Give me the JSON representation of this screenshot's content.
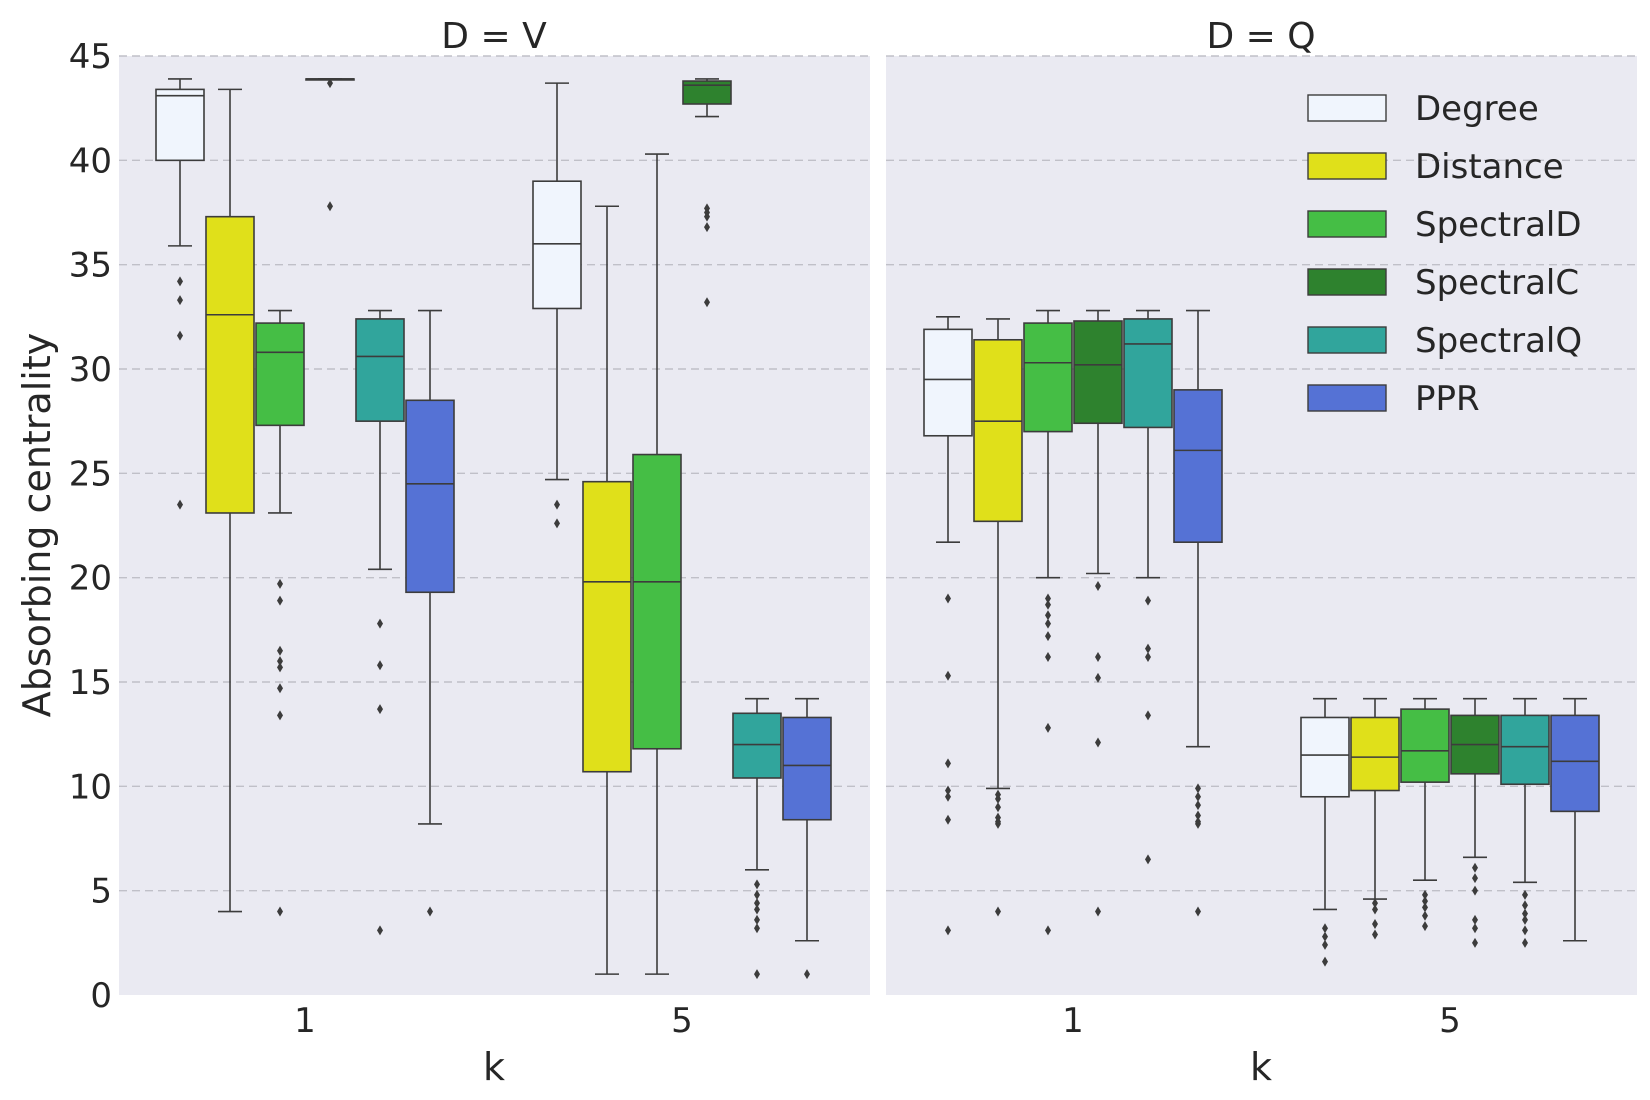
{
  "chart_data": {
    "type": "box",
    "ylabel": "Absorbing centrality",
    "xlabel": "k",
    "ylim": [
      0,
      45
    ],
    "yticks": [
      0,
      5,
      10,
      15,
      20,
      25,
      30,
      35,
      40,
      45
    ],
    "categories": [
      "1",
      "5"
    ],
    "grid": true,
    "legend_position": "top-right of right panel",
    "series": [
      {
        "name": "Degree",
        "color": "#f0f5fd"
      },
      {
        "name": "Distance",
        "color": "#e0e01a"
      },
      {
        "name": "SpectralD",
        "color": "#45be45"
      },
      {
        "name": "SpectralC",
        "color": "#2e822e"
      },
      {
        "name": "SpectralQ",
        "color": "#31a59c"
      },
      {
        "name": "PPR",
        "color": "#5572d5"
      }
    ],
    "panels": [
      {
        "title": "D = V",
        "groups": [
          {
            "category": "1",
            "boxes": [
              {
                "series": "Degree",
                "lo": 35.9,
                "q1": 40.0,
                "median": 43.1,
                "q3": 43.4,
                "hi": 43.9,
                "outliers": [
                  34.2,
                  33.3,
                  31.6,
                  23.5
                ]
              },
              {
                "series": "Distance",
                "lo": 4.0,
                "q1": 23.1,
                "median": 32.6,
                "q3": 37.3,
                "hi": 43.4,
                "outliers": []
              },
              {
                "series": "SpectralD",
                "lo": 23.1,
                "q1": 27.3,
                "median": 30.8,
                "q3": 32.2,
                "hi": 32.8,
                "outliers": [
                  19.7,
                  18.9,
                  16.5,
                  16.0,
                  15.7,
                  14.7,
                  13.4,
                  4.0
                ]
              },
              {
                "series": "SpectralC",
                "lo": 43.9,
                "q1": 43.9,
                "median": 43.9,
                "q3": 43.9,
                "hi": 43.9,
                "outliers": [
                  43.7,
                  37.8
                ]
              },
              {
                "series": "SpectralQ",
                "lo": 20.4,
                "q1": 27.5,
                "median": 30.6,
                "q3": 32.4,
                "hi": 32.8,
                "outliers": [
                  17.8,
                  15.8,
                  13.7,
                  3.1
                ]
              },
              {
                "series": "PPR",
                "lo": 8.2,
                "q1": 19.3,
                "median": 24.5,
                "q3": 28.5,
                "hi": 32.8,
                "outliers": [
                  4.0
                ]
              }
            ]
          },
          {
            "category": "5",
            "boxes": [
              {
                "series": "Degree",
                "lo": 24.7,
                "q1": 32.9,
                "median": 36.0,
                "q3": 39.0,
                "hi": 43.7,
                "outliers": [
                  23.5,
                  22.6
                ]
              },
              {
                "series": "Distance",
                "lo": 1.0,
                "q1": 10.7,
                "median": 19.8,
                "q3": 24.6,
                "hi": 37.8,
                "outliers": []
              },
              {
                "series": "SpectralD",
                "lo": 1.0,
                "q1": 11.8,
                "median": 19.8,
                "q3": 25.9,
                "hi": 40.3,
                "outliers": []
              },
              {
                "series": "SpectralC",
                "lo": 42.1,
                "q1": 42.7,
                "median": 43.6,
                "q3": 43.8,
                "hi": 43.9,
                "outliers": [
                  37.7,
                  37.5,
                  37.3,
                  36.8,
                  33.2
                ]
              },
              {
                "series": "SpectralQ",
                "lo": 6.0,
                "q1": 10.4,
                "median": 12.0,
                "q3": 13.5,
                "hi": 14.2,
                "outliers": [
                  5.3,
                  4.8,
                  4.4,
                  4.1,
                  3.6,
                  3.2,
                  1.0
                ]
              },
              {
                "series": "PPR",
                "lo": 2.6,
                "q1": 8.4,
                "median": 11.0,
                "q3": 13.3,
                "hi": 14.2,
                "outliers": [
                  1.0
                ]
              }
            ]
          }
        ]
      },
      {
        "title": "D = Q",
        "groups": [
          {
            "category": "1",
            "boxes": [
              {
                "series": "Degree",
                "lo": 21.7,
                "q1": 26.8,
                "median": 29.5,
                "q3": 31.9,
                "hi": 32.5,
                "outliers": [
                  19.0,
                  15.3,
                  11.1,
                  9.8,
                  9.5,
                  8.4,
                  3.1
                ]
              },
              {
                "series": "Distance",
                "lo": 9.9,
                "q1": 22.7,
                "median": 27.5,
                "q3": 31.4,
                "hi": 32.4,
                "outliers": [
                  9.6,
                  9.4,
                  9.0,
                  8.5,
                  8.3,
                  8.2,
                  4.0
                ]
              },
              {
                "series": "SpectralD",
                "lo": 20.0,
                "q1": 27.0,
                "median": 30.3,
                "q3": 32.2,
                "hi": 32.8,
                "outliers": [
                  19.0,
                  18.7,
                  18.2,
                  17.8,
                  17.2,
                  16.2,
                  12.8,
                  3.1
                ]
              },
              {
                "series": "SpectralC",
                "lo": 20.2,
                "q1": 27.4,
                "median": 30.2,
                "q3": 32.3,
                "hi": 32.8,
                "outliers": [
                  19.6,
                  16.2,
                  15.2,
                  12.1,
                  4.0
                ]
              },
              {
                "series": "SpectralQ",
                "lo": 20.0,
                "q1": 27.2,
                "median": 31.2,
                "q3": 32.4,
                "hi": 32.8,
                "outliers": [
                  18.9,
                  16.6,
                  16.2,
                  13.4,
                  6.5
                ]
              },
              {
                "series": "PPR",
                "lo": 11.9,
                "q1": 21.7,
                "median": 26.1,
                "q3": 29.0,
                "hi": 32.8,
                "outliers": [
                  9.9,
                  9.5,
                  9.1,
                  8.6,
                  8.3,
                  8.2,
                  4.0
                ]
              }
            ]
          },
          {
            "category": "5",
            "boxes": [
              {
                "series": "Degree",
                "lo": 4.1,
                "q1": 9.5,
                "median": 11.5,
                "q3": 13.3,
                "hi": 14.2,
                "outliers": [
                  3.2,
                  2.8,
                  2.4,
                  1.6
                ]
              },
              {
                "series": "Distance",
                "lo": 4.6,
                "q1": 9.8,
                "median": 11.4,
                "q3": 13.3,
                "hi": 14.2,
                "outliers": [
                  4.4,
                  4.1,
                  3.4,
                  2.9
                ]
              },
              {
                "series": "SpectralD",
                "lo": 5.5,
                "q1": 10.2,
                "median": 11.7,
                "q3": 13.7,
                "hi": 14.2,
                "outliers": [
                  4.8,
                  4.5,
                  4.2,
                  3.8,
                  3.3
                ]
              },
              {
                "series": "SpectralC",
                "lo": 6.6,
                "q1": 10.6,
                "median": 12.0,
                "q3": 13.4,
                "hi": 14.2,
                "outliers": [
                  6.1,
                  5.6,
                  5.0,
                  3.6,
                  3.2,
                  2.5
                ]
              },
              {
                "series": "SpectralQ",
                "lo": 5.4,
                "q1": 10.1,
                "median": 11.9,
                "q3": 13.4,
                "hi": 14.2,
                "outliers": [
                  4.8,
                  4.3,
                  3.9,
                  3.6,
                  3.1,
                  2.5
                ]
              },
              {
                "series": "PPR",
                "lo": 2.6,
                "q1": 8.8,
                "median": 11.2,
                "q3": 13.4,
                "hi": 14.2,
                "outliers": []
              }
            ]
          }
        ]
      }
    ]
  }
}
